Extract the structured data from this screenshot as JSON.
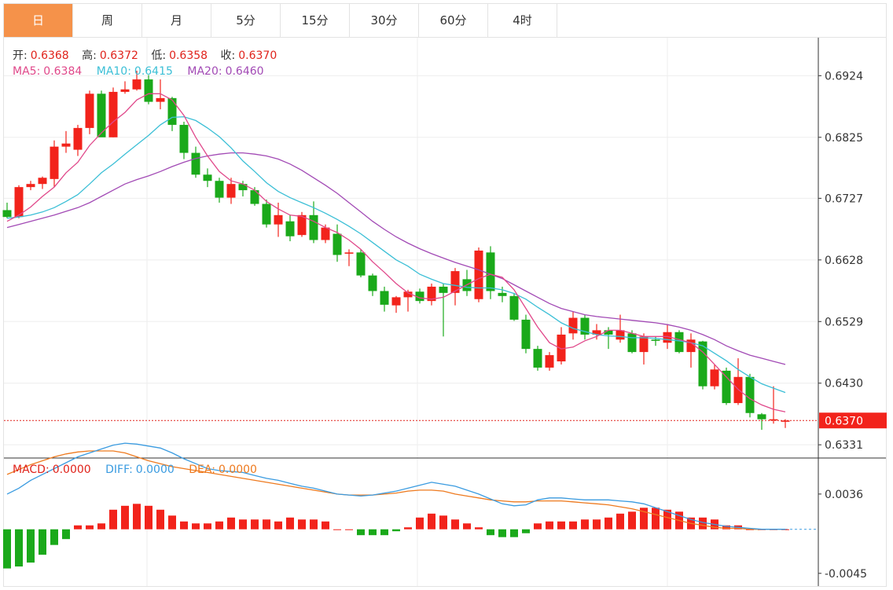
{
  "tabs": [
    {
      "label": "日",
      "active": true
    },
    {
      "label": "周",
      "active": false
    },
    {
      "label": "月",
      "active": false
    },
    {
      "label": "5分",
      "active": false
    },
    {
      "label": "15分",
      "active": false
    },
    {
      "label": "30分",
      "active": false
    },
    {
      "label": "60分",
      "active": false
    },
    {
      "label": "4时",
      "active": false
    }
  ],
  "ohlc_legend": {
    "open_label": "开:",
    "open": "0.6368",
    "high_label": "高:",
    "high": "0.6372",
    "low_label": "低:",
    "low": "0.6358",
    "close_label": "收:",
    "close": "0.6370"
  },
  "ma_legend": {
    "ma5_label": "MA5:",
    "ma5": "0.6384",
    "ma10_label": "MA10:",
    "ma10": "0.6415",
    "ma20_label": "MA20:",
    "ma20": "0.6460"
  },
  "macd_legend": {
    "macd_label": "MACD:",
    "macd": "0.0000",
    "diff_label": "DIFF:",
    "diff": "0.0000",
    "dea_label": "DEA:",
    "dea": "0.0000"
  },
  "colors": {
    "up": "#f2231b",
    "down": "#1aa91a",
    "ma5": "#e0488a",
    "ma10": "#3bbfd6",
    "ma20": "#a24ab5",
    "diff": "#3a9be0",
    "dea": "#ee7a1f",
    "label_red": "#e0231b"
  },
  "chart_data": {
    "type": "candlestick",
    "price_axis": {
      "ticks": [
        0.6924,
        0.6825,
        0.6727,
        0.6628,
        0.6529,
        0.643,
        0.6331
      ],
      "min": 0.6311,
      "max": 0.6985
    },
    "last_price": 0.637,
    "last_price_label": "0.6370",
    "candles": [
      [
        0.6708,
        0.672,
        0.6695,
        0.6697
      ],
      [
        0.6697,
        0.6748,
        0.6695,
        0.6745
      ],
      [
        0.6745,
        0.6755,
        0.674,
        0.675
      ],
      [
        0.675,
        0.6762,
        0.6742,
        0.676
      ],
      [
        0.6758,
        0.682,
        0.6745,
        0.681
      ],
      [
        0.681,
        0.6835,
        0.68,
        0.6815
      ],
      [
        0.6805,
        0.6845,
        0.6795,
        0.684
      ],
      [
        0.684,
        0.69,
        0.683,
        0.6895
      ],
      [
        0.6895,
        0.69,
        0.683,
        0.6825
      ],
      [
        0.6825,
        0.6905,
        0.6825,
        0.6898
      ],
      [
        0.6898,
        0.6915,
        0.6895,
        0.6902
      ],
      [
        0.6902,
        0.6932,
        0.69,
        0.6918
      ],
      [
        0.6918,
        0.6925,
        0.6878,
        0.6882
      ],
      [
        0.6882,
        0.6918,
        0.687,
        0.6888
      ],
      [
        0.6888,
        0.689,
        0.6835,
        0.6845
      ],
      [
        0.6845,
        0.685,
        0.679,
        0.68
      ],
      [
        0.68,
        0.681,
        0.676,
        0.6765
      ],
      [
        0.6765,
        0.6775,
        0.6745,
        0.6755
      ],
      [
        0.6755,
        0.676,
        0.672,
        0.6728
      ],
      [
        0.6728,
        0.676,
        0.6718,
        0.675
      ],
      [
        0.675,
        0.6755,
        0.673,
        0.674
      ],
      [
        0.674,
        0.6745,
        0.6715,
        0.6718
      ],
      [
        0.6718,
        0.6725,
        0.668,
        0.6685
      ],
      [
        0.6685,
        0.672,
        0.6665,
        0.67
      ],
      [
        0.669,
        0.67,
        0.6658,
        0.6666
      ],
      [
        0.6668,
        0.6705,
        0.6665,
        0.67
      ],
      [
        0.67,
        0.6722,
        0.6655,
        0.666
      ],
      [
        0.666,
        0.6685,
        0.6655,
        0.668
      ],
      [
        0.667,
        0.6685,
        0.6625,
        0.6636
      ],
      [
        0.6638,
        0.6645,
        0.6618,
        0.664
      ],
      [
        0.664,
        0.6645,
        0.66,
        0.6603
      ],
      [
        0.6603,
        0.6606,
        0.657,
        0.6578
      ],
      [
        0.6578,
        0.6585,
        0.6545,
        0.6556
      ],
      [
        0.6555,
        0.657,
        0.6543,
        0.6568
      ],
      [
        0.6568,
        0.658,
        0.6545,
        0.6577
      ],
      [
        0.6577,
        0.6582,
        0.6558,
        0.6562
      ],
      [
        0.6562,
        0.659,
        0.6555,
        0.6585
      ],
      [
        0.6585,
        0.659,
        0.6505,
        0.6575
      ],
      [
        0.6575,
        0.6615,
        0.6555,
        0.661
      ],
      [
        0.6597,
        0.6612,
        0.657,
        0.6578
      ],
      [
        0.6565,
        0.6648,
        0.656,
        0.6643
      ],
      [
        0.664,
        0.665,
        0.6565,
        0.6578
      ],
      [
        0.6575,
        0.6585,
        0.656,
        0.657
      ],
      [
        0.657,
        0.6575,
        0.653,
        0.6532
      ],
      [
        0.6532,
        0.654,
        0.6478,
        0.6485
      ],
      [
        0.6485,
        0.649,
        0.645,
        0.6455
      ],
      [
        0.6455,
        0.648,
        0.645,
        0.6475
      ],
      [
        0.6465,
        0.652,
        0.646,
        0.6508
      ],
      [
        0.651,
        0.6545,
        0.65,
        0.6535
      ],
      [
        0.6535,
        0.654,
        0.65,
        0.6508
      ],
      [
        0.6508,
        0.6525,
        0.65,
        0.6515
      ],
      [
        0.6515,
        0.652,
        0.6485,
        0.6508
      ],
      [
        0.65,
        0.654,
        0.6495,
        0.6515
      ],
      [
        0.651,
        0.6515,
        0.6478,
        0.648
      ],
      [
        0.648,
        0.651,
        0.646,
        0.6505
      ],
      [
        0.65,
        0.6505,
        0.649,
        0.6498
      ],
      [
        0.6495,
        0.6525,
        0.6485,
        0.6512
      ],
      [
        0.6512,
        0.6515,
        0.6478,
        0.648
      ],
      [
        0.648,
        0.651,
        0.6455,
        0.65
      ],
      [
        0.6497,
        0.6498,
        0.642,
        0.6425
      ],
      [
        0.6425,
        0.646,
        0.642,
        0.6452
      ],
      [
        0.645,
        0.6455,
        0.6395,
        0.6398
      ],
      [
        0.6398,
        0.647,
        0.6395,
        0.644
      ],
      [
        0.644,
        0.6445,
        0.6375,
        0.6382
      ],
      [
        0.638,
        0.6382,
        0.6355,
        0.6372
      ],
      [
        0.637,
        0.6425,
        0.6365,
        0.6372
      ],
      [
        0.6368,
        0.6372,
        0.6358,
        0.637
      ]
    ],
    "ma5": [
      0.669,
      0.67,
      0.6713,
      0.673,
      0.6745,
      0.6768,
      0.6785,
      0.6812,
      0.6832,
      0.685,
      0.6865,
      0.6885,
      0.6895,
      0.6895,
      0.6885,
      0.686,
      0.6825,
      0.6795,
      0.677,
      0.6755,
      0.675,
      0.674,
      0.6722,
      0.671,
      0.67,
      0.6698,
      0.669,
      0.668,
      0.6672,
      0.666,
      0.6645,
      0.6625,
      0.6608,
      0.659,
      0.6575,
      0.6567,
      0.6565,
      0.6568,
      0.6578,
      0.6588,
      0.6598,
      0.6605,
      0.66,
      0.658,
      0.655,
      0.652,
      0.6495,
      0.6485,
      0.6488,
      0.6498,
      0.6505,
      0.6515,
      0.6515,
      0.651,
      0.6505,
      0.6505,
      0.6505,
      0.65,
      0.6495,
      0.648,
      0.646,
      0.644,
      0.642,
      0.6405,
      0.6395,
      0.6388,
      0.6384
    ],
    "ma10": [
      0.6695,
      0.6697,
      0.67,
      0.6705,
      0.6712,
      0.6722,
      0.6733,
      0.675,
      0.6768,
      0.6782,
      0.6798,
      0.6813,
      0.6828,
      0.6845,
      0.6857,
      0.6858,
      0.6852,
      0.684,
      0.6826,
      0.6808,
      0.6787,
      0.677,
      0.6752,
      0.6738,
      0.6728,
      0.672,
      0.6712,
      0.6703,
      0.6693,
      0.6682,
      0.667,
      0.6656,
      0.6642,
      0.6628,
      0.6618,
      0.6605,
      0.6597,
      0.659,
      0.6587,
      0.6584,
      0.6583,
      0.6583,
      0.658,
      0.6574,
      0.6565,
      0.6552,
      0.654,
      0.6527,
      0.6518,
      0.6513,
      0.6508,
      0.6506,
      0.6505,
      0.6503,
      0.6503,
      0.6502,
      0.65,
      0.6498,
      0.6495,
      0.649,
      0.6478,
      0.6466,
      0.6452,
      0.644,
      0.6429,
      0.6422,
      0.6415
    ],
    "ma20": [
      0.668,
      0.6685,
      0.669,
      0.6695,
      0.67,
      0.6706,
      0.6712,
      0.672,
      0.673,
      0.674,
      0.675,
      0.6757,
      0.6763,
      0.677,
      0.6778,
      0.6785,
      0.6791,
      0.6795,
      0.6798,
      0.68,
      0.68,
      0.6798,
      0.6795,
      0.679,
      0.6782,
      0.6772,
      0.676,
      0.6748,
      0.6735,
      0.672,
      0.6705,
      0.669,
      0.6677,
      0.6665,
      0.6655,
      0.6646,
      0.6638,
      0.6631,
      0.6624,
      0.6618,
      0.6612,
      0.6605,
      0.6598,
      0.6588,
      0.6578,
      0.6568,
      0.6558,
      0.655,
      0.6545,
      0.654,
      0.6537,
      0.6535,
      0.6533,
      0.6531,
      0.6529,
      0.6527,
      0.6524,
      0.652,
      0.6515,
      0.6508,
      0.65,
      0.649,
      0.6482,
      0.6475,
      0.647,
      0.6465,
      0.646
    ],
    "macd_axis": {
      "ticks": [
        0.0036,
        -0.0045
      ],
      "max": 0.0072,
      "min": -0.0058
    },
    "macd": [
      -0.004,
      -0.0038,
      -0.0034,
      -0.0026,
      -0.0016,
      -0.001,
      0.0004,
      0.0004,
      0.0006,
      0.002,
      0.0024,
      0.0026,
      0.0024,
      0.002,
      0.0014,
      0.0008,
      0.0006,
      0.0006,
      0.0008,
      0.0012,
      0.001,
      0.001,
      0.001,
      0.0008,
      0.0012,
      0.001,
      0.001,
      0.0008,
      0.0,
      0.0,
      -0.0006,
      -0.0006,
      -0.0006,
      -0.0002,
      0.0002,
      0.0012,
      0.0016,
      0.0014,
      0.001,
      0.0006,
      0.0002,
      -0.0006,
      -0.0008,
      -0.0008,
      -0.0004,
      0.0006,
      0.0008,
      0.0008,
      0.0008,
      0.001,
      0.001,
      0.0012,
      0.0016,
      0.0018,
      0.0022,
      0.0022,
      0.002,
      0.0018,
      0.0012,
      0.0012,
      0.001,
      0.0004,
      0.0004,
      0.0,
      0.0,
      0.0,
      0.0
    ],
    "diff": [
      0.0036,
      0.0042,
      0.005,
      0.0056,
      0.0062,
      0.0068,
      0.0074,
      0.0078,
      0.0082,
      0.0086,
      0.0088,
      0.0087,
      0.0085,
      0.0083,
      0.0078,
      0.0072,
      0.0067,
      0.0062,
      0.006,
      0.0059,
      0.0058,
      0.0055,
      0.0052,
      0.005,
      0.0047,
      0.0044,
      0.0042,
      0.0039,
      0.0036,
      0.0035,
      0.0034,
      0.0035,
      0.0037,
      0.0039,
      0.0042,
      0.0045,
      0.0048,
      0.0046,
      0.0044,
      0.004,
      0.0036,
      0.0031,
      0.0026,
      0.0024,
      0.0025,
      0.003,
      0.0032,
      0.0032,
      0.0031,
      0.003,
      0.003,
      0.003,
      0.0029,
      0.0028,
      0.0026,
      0.0022,
      0.0018,
      0.0014,
      0.001,
      0.0007,
      0.0005,
      0.0003,
      0.0002,
      0.0001,
      0.0,
      0.0,
      0.0
    ],
    "dea": [
      0.0056,
      0.0061,
      0.0066,
      0.007,
      0.0074,
      0.0077,
      0.0079,
      0.008,
      0.008,
      0.008,
      0.0078,
      0.0074,
      0.007,
      0.0067,
      0.0064,
      0.0062,
      0.006,
      0.0058,
      0.0056,
      0.0054,
      0.0052,
      0.005,
      0.0048,
      0.0046,
      0.0044,
      0.0042,
      0.004,
      0.0038,
      0.0036,
      0.0035,
      0.0035,
      0.0035,
      0.0036,
      0.0037,
      0.0039,
      0.004,
      0.004,
      0.0039,
      0.0036,
      0.0034,
      0.0032,
      0.003,
      0.0029,
      0.0028,
      0.0028,
      0.0029,
      0.0029,
      0.0029,
      0.0028,
      0.0027,
      0.0026,
      0.0025,
      0.0023,
      0.0021,
      0.0018,
      0.0015,
      0.0012,
      0.0009,
      0.0006,
      0.0004,
      0.0002,
      0.0001,
      0.0001,
      0.0,
      0.0,
      0.0,
      0.0
    ]
  }
}
